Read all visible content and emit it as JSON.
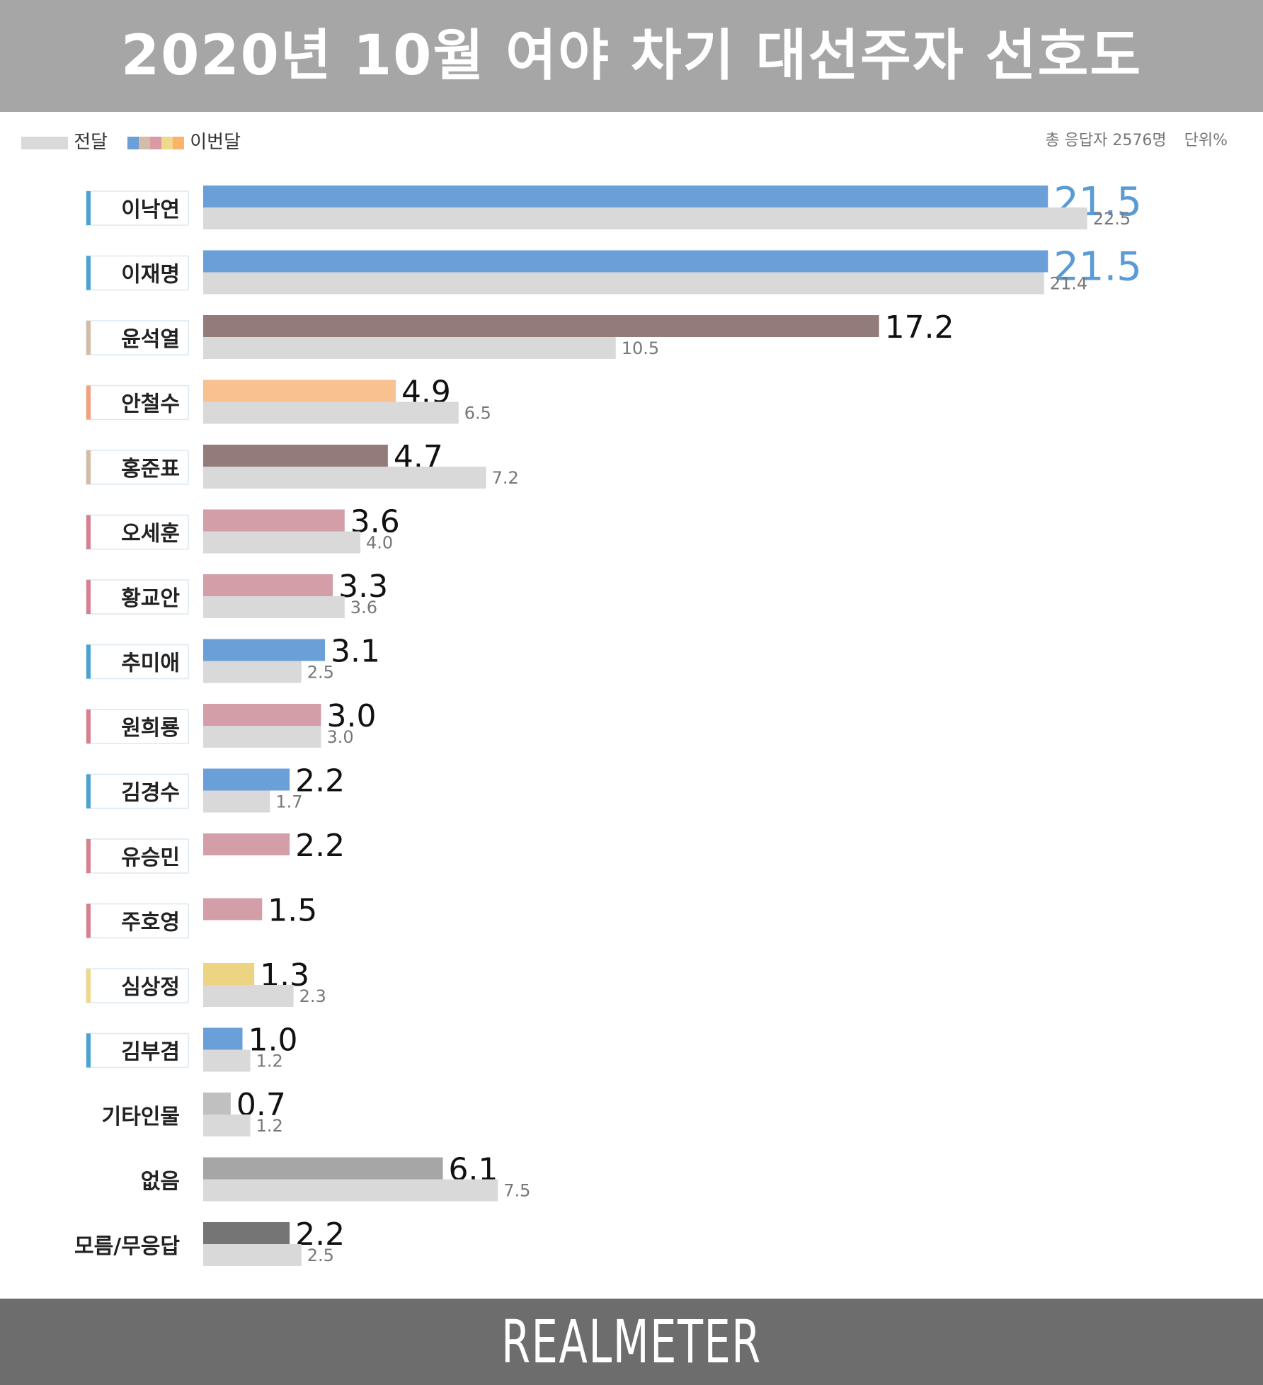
{
  "header": {
    "title": "2020년 10월 여야 차기 대선주자 선호도"
  },
  "legend": {
    "prev_label": "전달",
    "curr_label": "이번달",
    "curr_swatch_colors": [
      "#6a9fd8",
      "#d3bca5",
      "#d99aa5",
      "#f0d98a",
      "#f9b36a"
    ],
    "prev_color": "#d9d9d9"
  },
  "meta": {
    "respondents": "총 응답자 2576명",
    "unit": "단위%"
  },
  "footer": {
    "brand": "REALMETER"
  },
  "chart_data": {
    "type": "bar",
    "orientation": "horizontal",
    "title": "2020년 10월 여야 차기 대선주자 선호도",
    "series": [
      {
        "name": "이번달",
        "values": [
          21.5,
          21.5,
          17.2,
          4.9,
          4.7,
          3.6,
          3.3,
          3.1,
          3.0,
          2.2,
          2.2,
          1.5,
          1.3,
          1.0,
          0.7,
          6.1,
          2.2
        ]
      },
      {
        "name": "전달",
        "values": [
          22.5,
          21.4,
          10.5,
          6.5,
          7.2,
          4.0,
          3.6,
          2.5,
          3.0,
          1.7,
          null,
          null,
          2.3,
          1.2,
          1.2,
          7.5,
          2.5
        ]
      }
    ],
    "categories": [
      "이낙연",
      "이재명",
      "윤석열",
      "안철수",
      "홍준표",
      "오세훈",
      "황교안",
      "추미애",
      "원희룡",
      "김경수",
      "유승민",
      "주호영",
      "심상정",
      "김부겸",
      "기타인물",
      "없음",
      "모름/무응답"
    ],
    "bar_colors": [
      "#6a9fd8",
      "#6a9fd8",
      "#927b79",
      "#f9c090",
      "#927b79",
      "#d39ea7",
      "#d39ea7",
      "#6a9fd8",
      "#d39ea7",
      "#6a9fd8",
      "#d39ea7",
      "#d39ea7",
      "#ecd482",
      "#6a9fd8",
      "#c0c0c0",
      "#a6a6a6",
      "#757575"
    ],
    "tag_colors": [
      "#4aa3d0",
      "#4aa3d0",
      "#d3bca5",
      "#f4a07a",
      "#d3bca5",
      "#d87f90",
      "#d87f90",
      "#4aa3d0",
      "#d87f90",
      "#4aa3d0",
      "#d87f90",
      "#d87f90",
      "#efd88a",
      "#4aa3d0",
      null,
      null,
      null
    ],
    "highlight_color": "#5b9bd5",
    "xlim": [
      0,
      22.5
    ],
    "grid": false,
    "legend_position": "top-left"
  }
}
